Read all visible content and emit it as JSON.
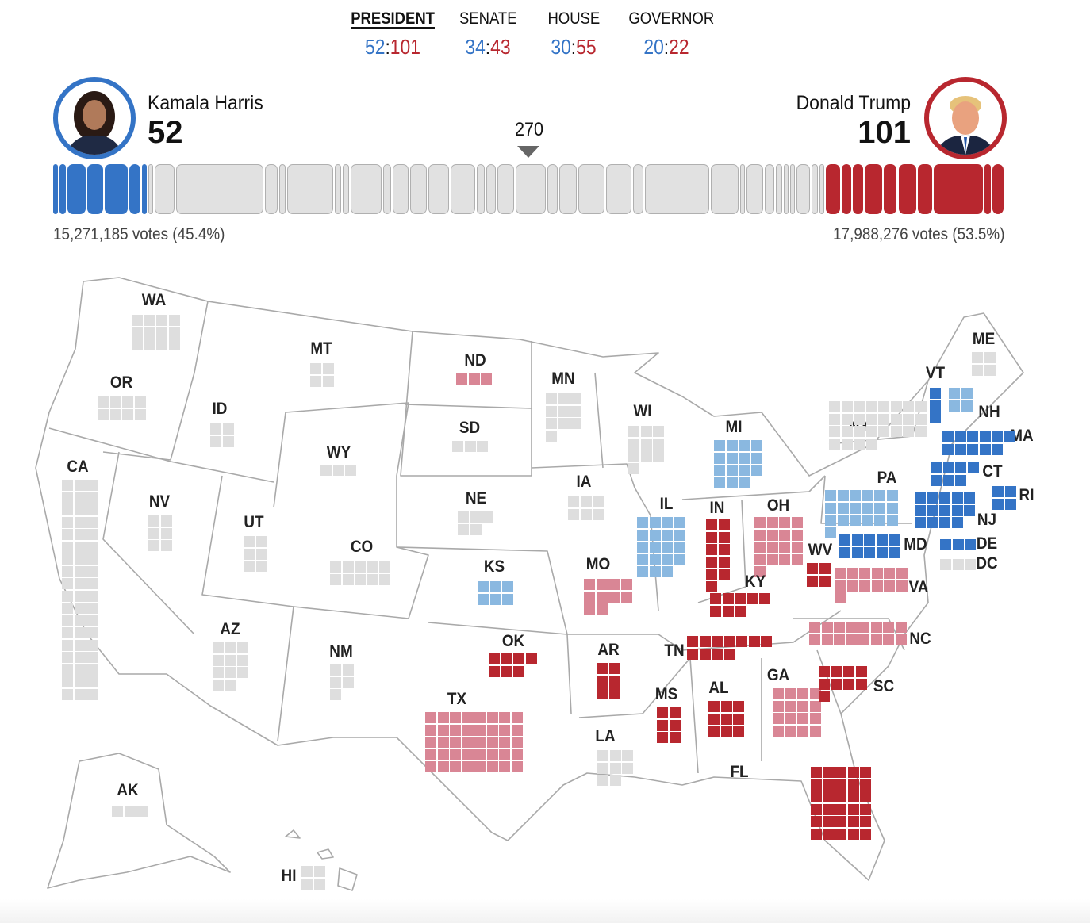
{
  "tabs": [
    {
      "label": "PRESIDENT",
      "dem": "52",
      "rep": "101",
      "active": true
    },
    {
      "label": "SENATE",
      "dem": "34",
      "rep": "43",
      "active": false
    },
    {
      "label": "HOUSE",
      "dem": "30",
      "rep": "55",
      "active": false
    },
    {
      "label": "GOVERNOR",
      "dem": "20",
      "rep": "22",
      "active": false
    }
  ],
  "score_separator": ":",
  "candidates": {
    "dem": {
      "name": "Kamala Harris",
      "ev": "52",
      "votes": "15,271,185 votes (45.4%)"
    },
    "rep": {
      "name": "Donald Trump",
      "ev": "101",
      "votes": "17,988,276 votes (53.5%)"
    }
  },
  "threshold_label": "270",
  "colors": {
    "dem": "#3474c6",
    "dem_leading": "#8ab8e0",
    "rep": "#b8272f",
    "rep_leading": "#d98695",
    "none": "#dedede"
  },
  "bar_segments": [
    {
      "state": "VT",
      "ev": 3,
      "status": "dem"
    },
    {
      "state": "RI",
      "ev": 4,
      "status": "dem"
    },
    {
      "state": "MA",
      "ev": 11,
      "status": "dem"
    },
    {
      "state": "MD",
      "ev": 10,
      "status": "dem"
    },
    {
      "state": "NJ",
      "ev": 14,
      "status": "dem"
    },
    {
      "state": "CT",
      "ev": 7,
      "status": "dem"
    },
    {
      "state": "DE",
      "ev": 3,
      "status": "dem"
    },
    {
      "state": "DC",
      "ev": 3,
      "status": "none"
    },
    {
      "state": "WA",
      "ev": 12,
      "status": "none"
    },
    {
      "state": "CA",
      "ev": 54,
      "status": "none"
    },
    {
      "state": "OR",
      "ev": 8,
      "status": "none"
    },
    {
      "state": "HI",
      "ev": 4,
      "status": "none"
    },
    {
      "state": "NY",
      "ev": 28,
      "status": "none"
    },
    {
      "state": "ME",
      "ev": 4,
      "status": "none"
    },
    {
      "state": "NH",
      "ev": 4,
      "status": "none"
    },
    {
      "state": "IL",
      "ev": 19,
      "status": "none"
    },
    {
      "state": "NM",
      "ev": 5,
      "status": "none"
    },
    {
      "state": "MN",
      "ev": 10,
      "status": "none"
    },
    {
      "state": "CO",
      "ev": 10,
      "status": "none"
    },
    {
      "state": "VA",
      "ev": 13,
      "status": "none"
    },
    {
      "state": "MI",
      "ev": 15,
      "status": "none"
    },
    {
      "state": "NE",
      "ev": 5,
      "status": "none"
    },
    {
      "state": "NV",
      "ev": 6,
      "status": "none"
    },
    {
      "state": "WI",
      "ev": 10,
      "status": "none"
    },
    {
      "state": "PA",
      "ev": 19,
      "status": "none"
    },
    {
      "state": "KS",
      "ev": 6,
      "status": "none"
    },
    {
      "state": "AZ",
      "ev": 11,
      "status": "none"
    },
    {
      "state": "GA",
      "ev": 16,
      "status": "none"
    },
    {
      "state": "NC",
      "ev": 16,
      "status": "none"
    },
    {
      "state": "IA",
      "ev": 6,
      "status": "none"
    },
    {
      "state": "TX",
      "ev": 40,
      "status": "none"
    },
    {
      "state": "OH",
      "ev": 17,
      "status": "none"
    },
    {
      "state": "AK",
      "ev": 3,
      "status": "none"
    },
    {
      "state": "MO",
      "ev": 10,
      "status": "none"
    },
    {
      "state": "UT",
      "ev": 6,
      "status": "none"
    },
    {
      "state": "MT",
      "ev": 4,
      "status": "none"
    },
    {
      "state": "SD",
      "ev": 3,
      "status": "none"
    },
    {
      "state": "ND",
      "ev": 3,
      "status": "none"
    },
    {
      "state": "LA",
      "ev": 8,
      "status": "none"
    },
    {
      "state": "ID",
      "ev": 4,
      "status": "none"
    },
    {
      "state": "WY",
      "ev": 3,
      "status": "none"
    },
    {
      "state": "SC",
      "ev": 9,
      "status": "rep"
    },
    {
      "state": "MS",
      "ev": 6,
      "status": "rep"
    },
    {
      "state": "AR",
      "ev": 6,
      "status": "rep"
    },
    {
      "state": "IN",
      "ev": 11,
      "status": "rep"
    },
    {
      "state": "KY",
      "ev": 8,
      "status": "rep"
    },
    {
      "state": "TN",
      "ev": 11,
      "status": "rep"
    },
    {
      "state": "AL",
      "ev": 9,
      "status": "rep"
    },
    {
      "state": "FL",
      "ev": 30,
      "status": "rep"
    },
    {
      "state": "WV",
      "ev": 4,
      "status": "rep"
    },
    {
      "state": "OK",
      "ev": 7,
      "status": "rep"
    }
  ],
  "states": [
    {
      "code": "WA",
      "ev": 12,
      "status": "none"
    },
    {
      "code": "OR",
      "ev": 8,
      "status": "none"
    },
    {
      "code": "CA",
      "ev": 54,
      "status": "none"
    },
    {
      "code": "NV",
      "ev": 6,
      "status": "none"
    },
    {
      "code": "ID",
      "ev": 4,
      "status": "none"
    },
    {
      "code": "MT",
      "ev": 4,
      "status": "none"
    },
    {
      "code": "WY",
      "ev": 3,
      "status": "none"
    },
    {
      "code": "UT",
      "ev": 6,
      "status": "none"
    },
    {
      "code": "AZ",
      "ev": 11,
      "status": "none"
    },
    {
      "code": "CO",
      "ev": 10,
      "status": "none"
    },
    {
      "code": "NM",
      "ev": 5,
      "status": "none"
    },
    {
      "code": "ND",
      "ev": 3,
      "status": "rep_leading"
    },
    {
      "code": "SD",
      "ev": 3,
      "status": "none"
    },
    {
      "code": "NE",
      "ev": 5,
      "status": "none"
    },
    {
      "code": "KS",
      "ev": 6,
      "status": "dem_leading"
    },
    {
      "code": "OK",
      "ev": 7,
      "status": "rep"
    },
    {
      "code": "TX",
      "ev": 40,
      "status": "rep_leading"
    },
    {
      "code": "MN",
      "ev": 10,
      "status": "none"
    },
    {
      "code": "IA",
      "ev": 6,
      "status": "none"
    },
    {
      "code": "MO",
      "ev": 10,
      "status": "rep_leading"
    },
    {
      "code": "AR",
      "ev": 6,
      "status": "rep"
    },
    {
      "code": "LA",
      "ev": 8,
      "status": "none"
    },
    {
      "code": "WI",
      "ev": 10,
      "status": "none"
    },
    {
      "code": "IL",
      "ev": 19,
      "status": "dem_leading"
    },
    {
      "code": "MI",
      "ev": 15,
      "status": "dem_leading"
    },
    {
      "code": "IN",
      "ev": 11,
      "status": "rep"
    },
    {
      "code": "OH",
      "ev": 17,
      "status": "rep_leading"
    },
    {
      "code": "KY",
      "ev": 8,
      "status": "rep"
    },
    {
      "code": "TN",
      "ev": 11,
      "status": "rep"
    },
    {
      "code": "MS",
      "ev": 6,
      "status": "rep"
    },
    {
      "code": "AL",
      "ev": 9,
      "status": "rep"
    },
    {
      "code": "GA",
      "ev": 16,
      "status": "rep_leading"
    },
    {
      "code": "FL",
      "ev": 30,
      "status": "rep"
    },
    {
      "code": "SC",
      "ev": 9,
      "status": "rep"
    },
    {
      "code": "NC",
      "ev": 16,
      "status": "rep_leading"
    },
    {
      "code": "VA",
      "ev": 13,
      "status": "rep_leading"
    },
    {
      "code": "WV",
      "ev": 4,
      "status": "rep"
    },
    {
      "code": "PA",
      "ev": 19,
      "status": "dem_leading"
    },
    {
      "code": "NY",
      "ev": 28,
      "status": "none"
    },
    {
      "code": "VT",
      "ev": 3,
      "status": "dem"
    },
    {
      "code": "NH",
      "ev": 4,
      "status": "dem_leading"
    },
    {
      "code": "ME",
      "ev": 4,
      "status": "none"
    },
    {
      "code": "MA",
      "ev": 11,
      "status": "dem"
    },
    {
      "code": "CT",
      "ev": 7,
      "status": "dem"
    },
    {
      "code": "RI",
      "ev": 4,
      "status": "dem"
    },
    {
      "code": "NJ",
      "ev": 14,
      "status": "dem"
    },
    {
      "code": "MD",
      "ev": 10,
      "status": "dem"
    },
    {
      "code": "DE",
      "ev": 3,
      "status": "dem"
    },
    {
      "code": "DC",
      "ev": 3,
      "status": "none"
    },
    {
      "code": "AK",
      "ev": 3,
      "status": "none"
    },
    {
      "code": "HI",
      "ev": 4,
      "status": "none"
    }
  ]
}
